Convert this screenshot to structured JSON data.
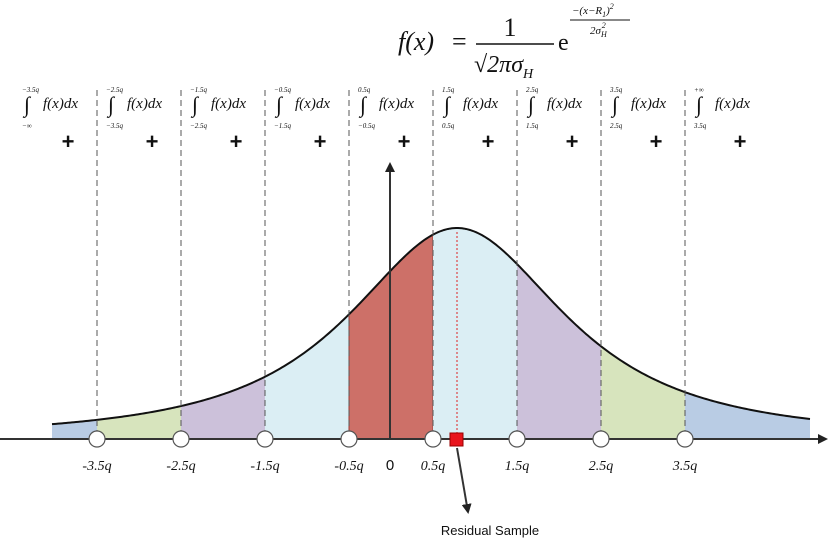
{
  "formula": {
    "lhs": "f(x)",
    "equals": "=",
    "numerator": "1",
    "denominator": "√2πσ",
    "denominator_sub": "H",
    "base": "e",
    "exponent_numerator": "−(x−R",
    "exponent_numerator_sub": "1",
    "exponent_numerator_close": ")",
    "exponent_numerator_sup": "2",
    "exponent_denominator": "2σ",
    "exponent_denominator_sub": "H",
    "exponent_denominator_sup": "2"
  },
  "integrals": [
    {
      "upper": "−3.5q",
      "lower": "−∞",
      "integrand": "f(x)dx",
      "operator": "+"
    },
    {
      "upper": "−2.5q",
      "lower": "−3.5q",
      "integrand": "f(x)dx",
      "operator": "+"
    },
    {
      "upper": "−1.5q",
      "lower": "−2.5q",
      "integrand": "f(x)dx",
      "operator": "+"
    },
    {
      "upper": "−0.5q",
      "lower": "−1.5q",
      "integrand": "f(x)dx",
      "operator": "+"
    },
    {
      "upper": "0.5q",
      "lower": "−0.5q",
      "integrand": "f(x)dx",
      "operator": "+"
    },
    {
      "upper": "1.5q",
      "lower": "0.5q",
      "integrand": "f(x)dx",
      "operator": "+"
    },
    {
      "upper": "2.5q",
      "lower": "1.5q",
      "integrand": "f(x)dx",
      "operator": "+"
    },
    {
      "upper": "3.5q",
      "lower": "2.5q",
      "integrand": "f(x)dx",
      "operator": "+"
    },
    {
      "upper": "+∞",
      "lower": "3.5q",
      "integrand": "f(x)dx",
      "operator": "+"
    }
  ],
  "axis_labels": [
    "-3.5q",
    "-2.5q",
    "-1.5q",
    "-0.5q",
    "0",
    "0.5q",
    "1.5q",
    "2.5q",
    "3.5q"
  ],
  "annotation": "Residual Sample"
}
